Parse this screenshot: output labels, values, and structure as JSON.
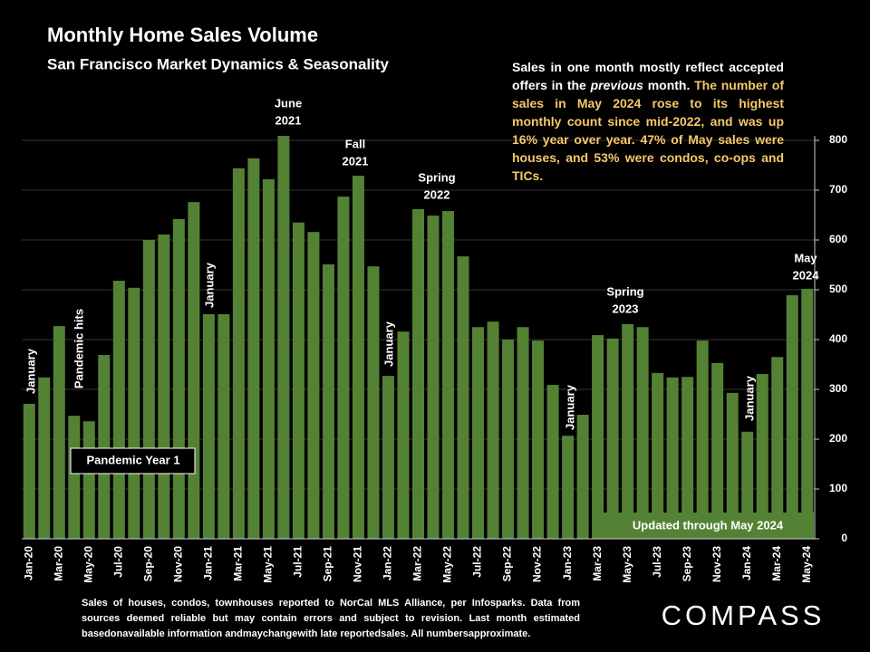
{
  "chart_data": {
    "type": "bar",
    "title": "Monthly Home Sales Volume",
    "subtitle": "San Francisco Market Dynamics & Seasonality",
    "note": [
      "Sales in one month mostly reflect accepted offers in the",
      "previous",
      "month.",
      "The number of sales in May 2024 rose to its highest monthly count since mid-2022, and was up 16% year over year. 47% of May sales were houses, and 53% were condos, co-ops and TICs."
    ],
    "categories": [
      "Jan-20",
      null,
      "Mar-20",
      null,
      "May-20",
      null,
      "Jul-20",
      null,
      "Sep-20",
      null,
      "Nov-20",
      null,
      "Jan-21",
      null,
      "Mar-21",
      null,
      "May-21",
      null,
      "Jul-21",
      null,
      "Sep-21",
      null,
      "Nov-21",
      null,
      "Jan-22",
      null,
      "Mar-22",
      null,
      "May-22",
      null,
      "Jul-22",
      null,
      "Sep-22",
      null,
      "Nov-22",
      null,
      "Jan-23",
      null,
      "Mar-23",
      null,
      "May-23",
      null,
      "Jul-23",
      null,
      "Sep-23",
      null,
      "Nov-23",
      null,
      "Jan-24",
      null,
      "Mar-24",
      null,
      "May-24"
    ],
    "values": [
      271,
      324,
      427,
      247,
      236,
      369,
      518,
      504,
      600,
      611,
      642,
      676,
      451,
      451,
      744,
      764,
      722,
      809,
      635,
      616,
      551,
      687,
      729,
      547,
      327,
      416,
      662,
      649,
      658,
      567,
      425,
      436,
      400,
      425,
      398,
      309,
      207,
      249,
      409,
      402,
      431,
      425,
      333,
      324,
      325,
      398,
      353,
      293,
      215,
      331,
      365,
      489,
      502
    ],
    "color": "#548235",
    "ylim": [
      0,
      800
    ],
    "yticks": [
      0,
      100,
      200,
      300,
      400,
      500,
      600,
      700,
      800
    ],
    "grid": true,
    "annotations": [
      {
        "lines": [
          "January"
        ]
      },
      {
        "lines": [
          "Pandemic hits"
        ]
      },
      {
        "lines": [
          "January"
        ]
      },
      {
        "lines": [
          "June",
          "2021"
        ]
      },
      {
        "lines": [
          "Fall",
          "2021"
        ]
      },
      {
        "lines": [
          "January"
        ]
      },
      {
        "lines": [
          "Spring",
          "2022"
        ]
      },
      {
        "lines": [
          "January"
        ]
      },
      {
        "lines": [
          "Spring",
          "2023"
        ]
      },
      {
        "lines": [
          "January"
        ]
      },
      {
        "lines": [
          "May",
          "2024"
        ]
      }
    ],
    "period_label": "Pandemic Year 1",
    "update_label": "Updated through May 2024",
    "footnote": "Sales of houses, condos, townhouses reported to NorCal MLS Alliance, per Infosparks. Data from sources deemed reliable but may contain errors and subject to revision. Last month estimated basedonavailable information andmaychangewith late reportedsales. All numbersapproximate.",
    "logo": "COMPASS"
  }
}
